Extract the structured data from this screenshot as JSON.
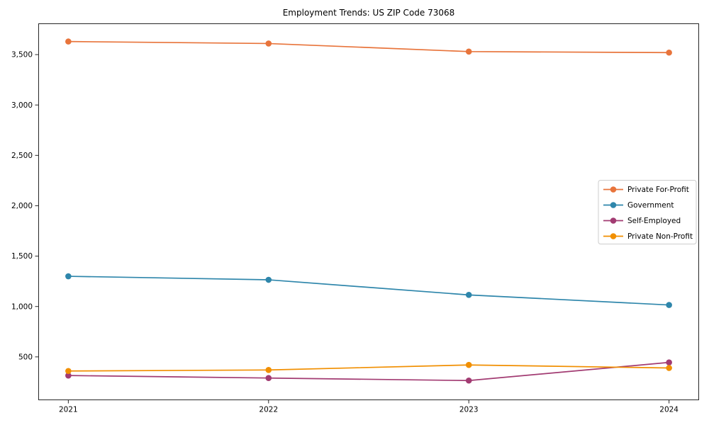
{
  "chart_data": {
    "type": "line",
    "title": "Employment Trends: US ZIP Code 73068",
    "x_labels": [
      "2021",
      "2022",
      "2023",
      "2024"
    ],
    "y_tick_labels": [
      "500",
      "1,000",
      "1,500",
      "2,000",
      "2,500",
      "3,000",
      "3,500"
    ],
    "y_ticks": [
      500,
      1000,
      1500,
      2000,
      2500,
      3000,
      3500
    ],
    "ylim": [
      70,
      3810
    ],
    "grid": false,
    "legend_position": "center-right",
    "series": [
      {
        "name": "Private For-Profit",
        "color": "#E8743B",
        "values": [
          3630,
          3610,
          3530,
          3520
        ]
      },
      {
        "name": "Government",
        "color": "#2E86AB",
        "values": [
          1300,
          1265,
          1115,
          1015
        ]
      },
      {
        "name": "Self-Employed",
        "color": "#A23B72",
        "values": [
          315,
          290,
          265,
          445
        ]
      },
      {
        "name": "Private Non-Profit",
        "color": "#F18F01",
        "values": [
          360,
          370,
          420,
          390
        ]
      }
    ]
  }
}
